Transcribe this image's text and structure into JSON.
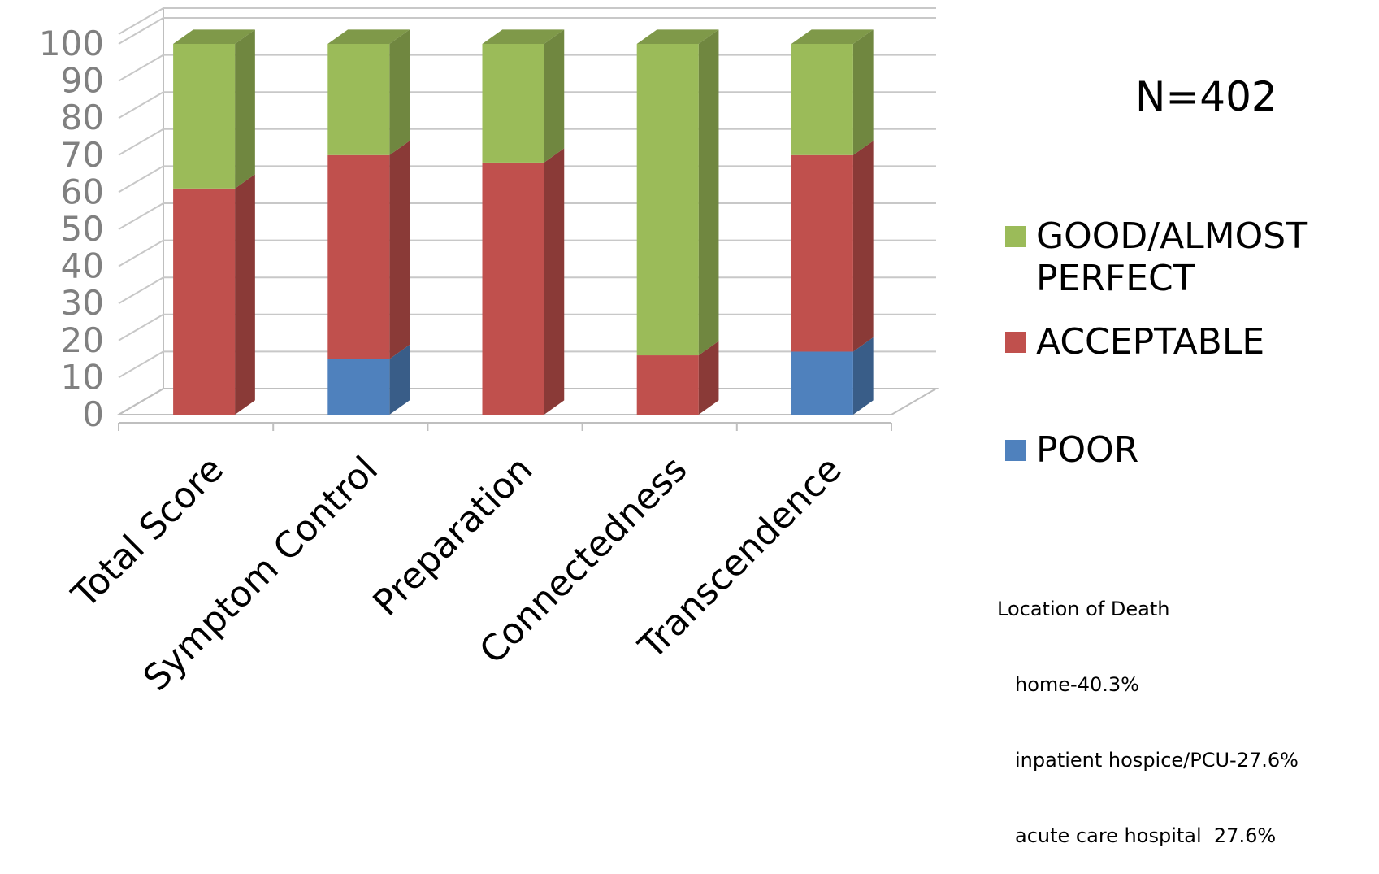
{
  "chart_data": {
    "type": "bar",
    "stacked": true,
    "style": "3d",
    "categories": [
      "Total Score",
      "Symptom Control",
      "Preparation",
      "Connectedness",
      "Transcendence"
    ],
    "series": [
      {
        "name": "POOR",
        "color": "#4f81bd",
        "values": [
          0,
          15,
          0,
          0,
          17
        ]
      },
      {
        "name": "ACCEPTABLE",
        "color": "#c0504d",
        "values": [
          61,
          55,
          68,
          16,
          53
        ]
      },
      {
        "name": "GOOD/ALMOST PERFECT",
        "color": "#9bbb59",
        "values": [
          39,
          30,
          32,
          84,
          30
        ]
      }
    ],
    "ylim": [
      0,
      100
    ],
    "yticks": [
      "0",
      "10",
      "20",
      "30",
      "40",
      "50",
      "60",
      "70",
      "80",
      "90",
      "100"
    ],
    "grid": true,
    "legend_position": "right"
  },
  "annotation": "N=402",
  "legend": {
    "items": [
      {
        "label": "GOOD/ALMOST PERFECT",
        "color": "#9bbb59"
      },
      {
        "label": "ACCEPTABLE",
        "color": "#c0504d"
      },
      {
        "label": "POOR",
        "color": "#4f81bd"
      }
    ]
  },
  "note": {
    "title": "Location of Death",
    "lines": [
      "home-40.3%",
      "inpatient hospice/PCU-27.6%",
      "acute care hospital  27.6%"
    ]
  }
}
